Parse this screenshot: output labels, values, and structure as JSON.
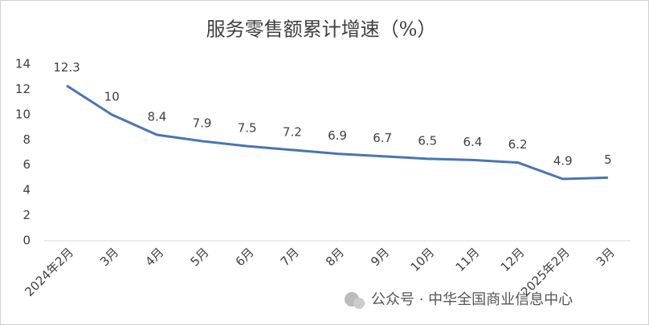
{
  "chart_data": {
    "type": "line",
    "title": "服务零售额累计增速（%）",
    "categories": [
      "2024年2月",
      "3月",
      "4月",
      "5月",
      "6月",
      "7月",
      "8月",
      "9月",
      "10月",
      "11月",
      "12月",
      "2025年2月",
      "3月"
    ],
    "series": [
      {
        "name": "服务零售额累计增速",
        "color": "#4a74b4",
        "values": [
          12.3,
          10,
          8.4,
          7.9,
          7.5,
          7.2,
          6.9,
          6.7,
          6.5,
          6.4,
          6.2,
          4.9,
          5
        ]
      }
    ],
    "ylim": [
      0,
      14
    ],
    "yticks": [
      0,
      2,
      4,
      6,
      8,
      10,
      12,
      14
    ],
    "grid": false
  },
  "watermark": "公众号 · 中华全国商业信息中心"
}
